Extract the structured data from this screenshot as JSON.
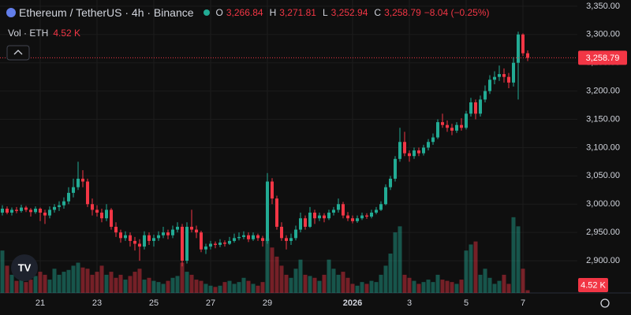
{
  "chart_data": {
    "type": "candlestick",
    "title": "Ethereum / TetherUS · 4h · Binance",
    "ohlc_keys": [
      "O",
      "H",
      "L",
      "C"
    ],
    "ohlc_value_labels": [
      "3,266.84",
      "3,271.81",
      "3,252.94",
      "3,258.79"
    ],
    "change_label": "−8.04 (−0.25%)",
    "volume_title": "Vol · ETH",
    "volume_value_label": "4.52 K",
    "up_color": "#22ab94",
    "down_color": "#f23645",
    "grid": true,
    "ylim": [
      2843,
      3361
    ],
    "yticks": [
      {
        "value": 3350,
        "label": "3,350.00"
      },
      {
        "value": 3300,
        "label": "3,300.00"
      },
      {
        "value": 3250,
        "label": "3,250.00"
      },
      {
        "value": 3200,
        "label": "3,200.00"
      },
      {
        "value": 3150,
        "label": "3,150.00"
      },
      {
        "value": 3100,
        "label": "3,100.00"
      },
      {
        "value": 3050,
        "label": "3,050.00"
      },
      {
        "value": 3000,
        "label": "3,000.00"
      },
      {
        "value": 2950,
        "label": "2,950.00"
      },
      {
        "value": 2900,
        "label": "2,900.00"
      }
    ],
    "volume_ylim": [
      0,
      130
    ],
    "categories": [
      null,
      null,
      null,
      null,
      null,
      null,
      null,
      null,
      "21",
      null,
      null,
      null,
      null,
      null,
      null,
      null,
      null,
      null,
      null,
      null,
      "23",
      null,
      null,
      null,
      null,
      null,
      null,
      null,
      null,
      null,
      null,
      null,
      "25",
      null,
      null,
      null,
      null,
      null,
      null,
      null,
      null,
      null,
      null,
      null,
      "27",
      null,
      null,
      null,
      null,
      null,
      null,
      null,
      null,
      null,
      null,
      null,
      "29",
      null,
      null,
      null,
      null,
      null,
      null,
      null,
      null,
      null,
      null,
      null,
      null,
      null,
      null,
      null,
      null,
      null,
      "2026",
      null,
      null,
      null,
      null,
      null,
      null,
      null,
      null,
      null,
      null,
      null,
      "3",
      null,
      null,
      null,
      null,
      null,
      null,
      null,
      null,
      null,
      null,
      null,
      "5",
      null,
      null,
      null,
      null,
      null,
      null,
      null,
      null,
      null,
      null,
      null,
      "7",
      null
    ],
    "ohlc": [
      [
        2985,
        2998,
        2980,
        2992
      ],
      [
        2992,
        2996,
        2982,
        2985
      ],
      [
        2985,
        2994,
        2980,
        2990
      ],
      [
        2990,
        2995,
        2984,
        2988
      ],
      [
        2988,
        2999,
        2985,
        2994
      ],
      [
        2994,
        2997,
        2986,
        2990
      ],
      [
        2990,
        2993,
        2978,
        2986
      ],
      [
        2986,
        2996,
        2983,
        2992
      ],
      [
        2992,
        2994,
        2970,
        2985
      ],
      [
        2985,
        2990,
        2965,
        2980
      ],
      [
        2980,
        2996,
        2975,
        2990
      ],
      [
        2990,
        3000,
        2985,
        2995
      ],
      [
        2995,
        3005,
        2988,
        2998
      ],
      [
        2998,
        3012,
        2992,
        3005
      ],
      [
        3005,
        3030,
        3000,
        3020
      ],
      [
        3020,
        3045,
        3012,
        3030
      ],
      [
        3030,
        3075,
        3025,
        3045
      ],
      [
        3045,
        3060,
        3030,
        3040
      ],
      [
        3040,
        3045,
        2995,
        3000
      ],
      [
        3000,
        3010,
        2980,
        2990
      ],
      [
        2990,
        2998,
        2978,
        2985
      ],
      [
        2985,
        2992,
        2968,
        2975
      ],
      [
        2975,
        3000,
        2970,
        2990
      ],
      [
        2990,
        2993,
        2955,
        2960
      ],
      [
        2960,
        2968,
        2942,
        2950
      ],
      [
        2950,
        2955,
        2932,
        2940
      ],
      [
        2940,
        2952,
        2935,
        2945
      ],
      [
        2945,
        2950,
        2925,
        2935
      ],
      [
        2935,
        2942,
        2918,
        2930
      ],
      [
        2930,
        2938,
        2900,
        2925
      ],
      [
        2925,
        2952,
        2920,
        2945
      ],
      [
        2945,
        2950,
        2928,
        2935
      ],
      [
        2935,
        2946,
        2925,
        2940
      ],
      [
        2940,
        2952,
        2935,
        2945
      ],
      [
        2945,
        2960,
        2940,
        2950
      ],
      [
        2950,
        2955,
        2938,
        2945
      ],
      [
        2945,
        2962,
        2940,
        2955
      ],
      [
        2955,
        2968,
        2950,
        2960
      ],
      [
        2960,
        2965,
        2890,
        2900
      ],
      [
        2900,
        2968,
        2895,
        2960
      ],
      [
        2960,
        2990,
        2950,
        2955
      ],
      [
        2955,
        2962,
        2940,
        2950
      ],
      [
        2950,
        2953,
        2915,
        2920
      ],
      [
        2920,
        2930,
        2912,
        2925
      ],
      [
        2925,
        2935,
        2920,
        2930
      ],
      [
        2930,
        2934,
        2922,
        2928
      ],
      [
        2928,
        2938,
        2924,
        2932
      ],
      [
        2932,
        2936,
        2925,
        2930
      ],
      [
        2930,
        2942,
        2928,
        2935
      ],
      [
        2935,
        2948,
        2932,
        2940
      ],
      [
        2940,
        2950,
        2936,
        2942
      ],
      [
        2942,
        2952,
        2938,
        2945
      ],
      [
        2945,
        2950,
        2933,
        2938
      ],
      [
        2938,
        2950,
        2935,
        2945
      ],
      [
        2945,
        2948,
        2935,
        2940
      ],
      [
        2940,
        2944,
        2925,
        2935
      ],
      [
        2935,
        3055,
        2930,
        3040
      ],
      [
        3040,
        3046,
        3000,
        3010
      ],
      [
        3010,
        3015,
        2955,
        2960
      ],
      [
        2960,
        2968,
        2935,
        2940
      ],
      [
        2940,
        2945,
        2920,
        2935
      ],
      [
        2935,
        2948,
        2928,
        2940
      ],
      [
        2940,
        2962,
        2936,
        2955
      ],
      [
        2955,
        2985,
        2950,
        2975
      ],
      [
        2975,
        2980,
        2955,
        2960
      ],
      [
        2960,
        2995,
        2958,
        2985
      ],
      [
        2985,
        2990,
        2965,
        2975
      ],
      [
        2975,
        2985,
        2970,
        2980
      ],
      [
        2980,
        2984,
        2968,
        2975
      ],
      [
        2975,
        2990,
        2972,
        2985
      ],
      [
        2985,
        2995,
        2980,
        2990
      ],
      [
        2990,
        3010,
        2985,
        3000
      ],
      [
        3000,
        3004,
        2975,
        2980
      ],
      [
        2980,
        2986,
        2970,
        2975
      ],
      [
        2975,
        2980,
        2966,
        2970
      ],
      [
        2970,
        2980,
        2967,
        2975
      ],
      [
        2975,
        2985,
        2972,
        2980
      ],
      [
        2980,
        2984,
        2974,
        2978
      ],
      [
        2978,
        2990,
        2975,
        2985
      ],
      [
        2985,
        2995,
        2982,
        2990
      ],
      [
        2990,
        3005,
        2988,
        3000
      ],
      [
        3000,
        3035,
        2998,
        3030
      ],
      [
        3030,
        3050,
        3025,
        3045
      ],
      [
        3045,
        3085,
        3040,
        3080
      ],
      [
        3080,
        3135,
        3075,
        3110
      ],
      [
        3110,
        3128,
        3085,
        3090
      ],
      [
        3090,
        3095,
        3075,
        3085
      ],
      [
        3085,
        3100,
        3080,
        3095
      ],
      [
        3095,
        3100,
        3085,
        3090
      ],
      [
        3090,
        3105,
        3086,
        3100
      ],
      [
        3100,
        3115,
        3095,
        3110
      ],
      [
        3110,
        3125,
        3105,
        3118
      ],
      [
        3118,
        3150,
        3115,
        3145
      ],
      [
        3145,
        3160,
        3135,
        3140
      ],
      [
        3140,
        3148,
        3128,
        3135
      ],
      [
        3135,
        3142,
        3122,
        3130
      ],
      [
        3130,
        3145,
        3126,
        3140
      ],
      [
        3140,
        3152,
        3130,
        3135
      ],
      [
        3135,
        3165,
        3132,
        3160
      ],
      [
        3160,
        3188,
        3155,
        3180
      ],
      [
        3180,
        3185,
        3150,
        3160
      ],
      [
        3160,
        3192,
        3155,
        3185
      ],
      [
        3185,
        3210,
        3180,
        3200
      ],
      [
        3200,
        3228,
        3195,
        3220
      ],
      [
        3220,
        3235,
        3212,
        3225
      ],
      [
        3225,
        3245,
        3218,
        3230
      ],
      [
        3230,
        3240,
        3215,
        3225
      ],
      [
        3225,
        3232,
        3205,
        3215
      ],
      [
        3215,
        3260,
        3208,
        3250
      ],
      [
        3250,
        3305,
        3185,
        3300
      ],
      [
        3300,
        3302,
        3262,
        3266.84
      ],
      [
        3266.84,
        3271.81,
        3252.94,
        3258.79
      ]
    ],
    "volume": [
      70,
      45,
      30,
      20,
      25,
      18,
      22,
      28,
      35,
      30,
      22,
      40,
      30,
      35,
      38,
      45,
      50,
      42,
      40,
      30,
      35,
      45,
      30,
      35,
      25,
      30,
      22,
      28,
      35,
      40,
      22,
      25,
      20,
      18,
      15,
      20,
      25,
      28,
      50,
      35,
      30,
      22,
      20,
      15,
      12,
      10,
      12,
      18,
      20,
      15,
      18,
      25,
      20,
      15,
      12,
      18,
      90,
      75,
      60,
      45,
      30,
      25,
      40,
      55,
      30,
      28,
      25,
      20,
      30,
      55,
      40,
      30,
      35,
      25,
      15,
      12,
      18,
      15,
      20,
      18,
      30,
      45,
      65,
      100,
      110,
      30,
      25,
      20,
      15,
      18,
      22,
      18,
      30,
      22,
      20,
      18,
      15,
      22,
      70,
      80,
      85,
      30,
      40,
      25,
      15,
      20,
      30,
      15,
      125,
      110,
      40,
      4.52
    ]
  }
}
